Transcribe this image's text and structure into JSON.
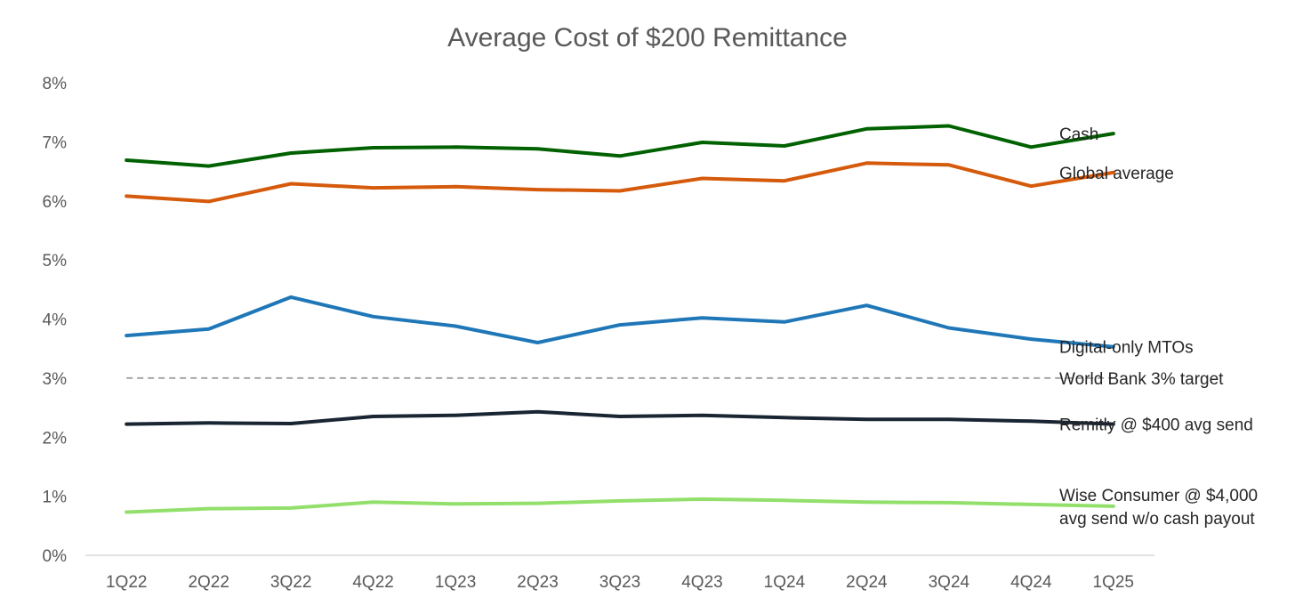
{
  "chart_data": {
    "type": "line",
    "title": "Average Cost of $200 Remittance",
    "xlabel": "",
    "ylabel": "",
    "ylim": [
      0,
      8
    ],
    "grid": false,
    "legend": "inline-right",
    "categories": [
      "1Q22",
      "2Q22",
      "3Q22",
      "4Q22",
      "1Q23",
      "2Q23",
      "3Q23",
      "4Q23",
      "1Q24",
      "2Q24",
      "3Q24",
      "4Q24",
      "1Q25"
    ],
    "y_ticks": [
      {
        "value": 0,
        "label": "0%"
      },
      {
        "value": 1,
        "label": "1%"
      },
      {
        "value": 2,
        "label": "2%"
      },
      {
        "value": 3,
        "label": "3%"
      },
      {
        "value": 4,
        "label": "4%"
      },
      {
        "value": 5,
        "label": "5%"
      },
      {
        "value": 6,
        "label": "6%"
      },
      {
        "value": 7,
        "label": "7%"
      },
      {
        "value": 8,
        "label": "8%"
      }
    ],
    "series": [
      {
        "name": "Cash",
        "label_lines": [
          "Cash"
        ],
        "color": "#006100",
        "dashed": false,
        "values": [
          6.69,
          6.59,
          6.81,
          6.9,
          6.91,
          6.88,
          6.76,
          6.99,
          6.93,
          7.22,
          7.27,
          6.91,
          7.14
        ]
      },
      {
        "name": "Global average",
        "label_lines": [
          "Global average"
        ],
        "color": "#D55A0B",
        "dashed": false,
        "values": [
          6.08,
          5.99,
          6.29,
          6.22,
          6.24,
          6.19,
          6.17,
          6.38,
          6.34,
          6.64,
          6.61,
          6.25,
          6.48
        ]
      },
      {
        "name": "Digital-only MTOs",
        "label_lines": [
          "Digital-only MTOs"
        ],
        "color": "#1F77B8",
        "dashed": false,
        "values": [
          3.72,
          3.83,
          4.37,
          4.04,
          3.88,
          3.6,
          3.9,
          4.02,
          3.95,
          4.23,
          3.85,
          3.66,
          3.53
        ]
      },
      {
        "name": "World Bank 3% target",
        "label_lines": [
          "World Bank 3% target"
        ],
        "color": "#A6A6A6",
        "dashed": true,
        "values": [
          3,
          3,
          3,
          3,
          3,
          3,
          3,
          3,
          3,
          3,
          3,
          3,
          3
        ]
      },
      {
        "name": "Remitly @ $400 avg send",
        "label_lines": [
          "Remitly @ $400 avg send"
        ],
        "color": "#1A2533",
        "dashed": false,
        "values": [
          2.22,
          2.24,
          2.23,
          2.35,
          2.37,
          2.43,
          2.35,
          2.37,
          2.33,
          2.3,
          2.3,
          2.27,
          2.22
        ]
      },
      {
        "name": "Wise Consumer @ $4,000 avg send w/o cash payout",
        "label_lines": [
          "Wise Consumer @ $4,000",
          "avg send w/o cash payout"
        ],
        "color": "#92E06B",
        "dashed": false,
        "values": [
          0.73,
          0.79,
          0.8,
          0.9,
          0.87,
          0.88,
          0.92,
          0.95,
          0.93,
          0.9,
          0.89,
          0.86,
          0.83
        ]
      }
    ]
  }
}
